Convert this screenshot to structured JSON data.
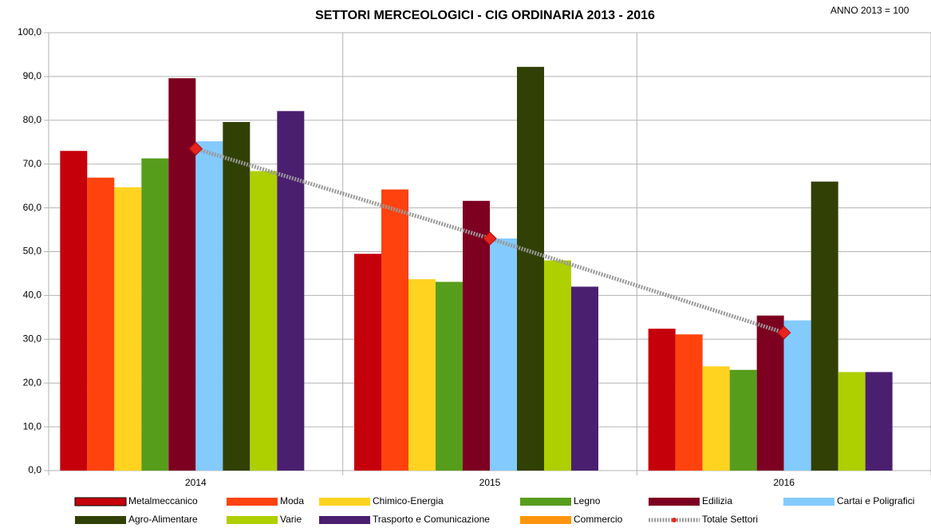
{
  "chart_data": {
    "type": "bar",
    "title": "SETTORI MERCEOLOGICI - CIG ORDINARIA 2013 - 2016",
    "annotation": "ANNO 2013 = 100",
    "categories": [
      "2014",
      "2015",
      "2016"
    ],
    "ylim": [
      0,
      100
    ],
    "yticks": [
      {
        "value": 0,
        "label": "0,0"
      },
      {
        "value": 10,
        "label": "10,0"
      },
      {
        "value": 20,
        "label": "20,0"
      },
      {
        "value": 30,
        "label": "30,0"
      },
      {
        "value": 40,
        "label": "40,0"
      },
      {
        "value": 50,
        "label": "50,0"
      },
      {
        "value": 60,
        "label": "60,0"
      },
      {
        "value": 70,
        "label": "70,0"
      },
      {
        "value": 80,
        "label": "80,0"
      },
      {
        "value": 90,
        "label": "90,0"
      },
      {
        "value": 100,
        "label": "100,0"
      }
    ],
    "grid": true,
    "legend": "bottom",
    "series": [
      {
        "name": "Metalmeccanico",
        "color": "#c5000b",
        "values": [
          73.0,
          49.5,
          32.4
        ]
      },
      {
        "name": "Moda",
        "color": "#ff420e",
        "values": [
          66.9,
          64.2,
          31.1
        ]
      },
      {
        "name": "Chimico-Energia",
        "color": "#ffd320",
        "values": [
          64.7,
          43.7,
          23.8
        ]
      },
      {
        "name": "Legno",
        "color": "#579d1c",
        "values": [
          71.3,
          43.1,
          23.0
        ]
      },
      {
        "name": "Edilizia",
        "color": "#7e0021",
        "values": [
          89.6,
          61.6,
          35.4
        ]
      },
      {
        "name": "Cartai e Poligrafici",
        "color": "#83caff",
        "values": [
          75.2,
          53.0,
          34.3
        ]
      },
      {
        "name": "Agro-Alimentare",
        "color": "#314004",
        "values": [
          79.6,
          92.2,
          66.0
        ]
      },
      {
        "name": "Varie",
        "color": "#aecf00",
        "values": [
          68.4,
          48.0,
          22.5
        ]
      },
      {
        "name": "Trasporto e Comunicazione",
        "color": "#4b1f6f",
        "values": [
          82.1,
          42.0,
          22.5
        ]
      },
      {
        "name": "Commercio",
        "color": "#ff950e",
        "values": [
          null,
          null,
          null
        ]
      },
      {
        "name": "Totale Settori",
        "color": "#999999",
        "type": "line",
        "values": [
          73.5,
          53.0,
          31.5
        ]
      }
    ]
  }
}
